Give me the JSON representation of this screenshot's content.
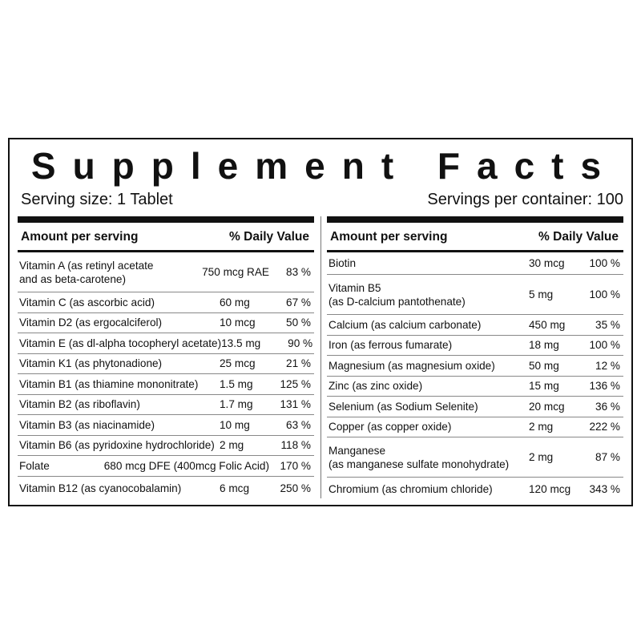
{
  "title": "Supplement Facts",
  "serving_size": "Serving size: 1 Tablet",
  "servings_per_container": "Servings per container: 100",
  "columns": [
    {
      "header_amount": "Amount per serving",
      "header_dv": "% Daily Value",
      "rows": [
        {
          "name": [
            "Vitamin A (as retinyl acetate",
            "and as beta-carotene)"
          ],
          "amount": "750 mcg RAE",
          "dv": "83 %"
        },
        {
          "name": [
            "Vitamin C (as ascorbic acid)"
          ],
          "amount": "60 mg",
          "dv": "67 %"
        },
        {
          "name": [
            "Vitamin D2 (as ergocalciferol)"
          ],
          "amount": "10 mcg",
          "dv": "50 %"
        },
        {
          "name": [
            "Vitamin E (as dl-alpha tocopheryl acetate)"
          ],
          "amount": "13.5 mg",
          "dv": "90 %"
        },
        {
          "name": [
            "Vitamin K1 (as phytonadione)"
          ],
          "amount": "25 mcg",
          "dv": "21 %"
        },
        {
          "name": [
            "Vitamin B1 (as thiamine mononitrate)"
          ],
          "amount": "1.5 mg",
          "dv": "125 %"
        },
        {
          "name": [
            "Vitamin B2 (as riboflavin)"
          ],
          "amount": "1.7 mg",
          "dv": "131 %"
        },
        {
          "name": [
            "Vitamin B3 (as niacinamide)"
          ],
          "amount": "10 mg",
          "dv": "63 %"
        },
        {
          "name": [
            "Vitamin B6 (as pyridoxine hydrochloride)"
          ],
          "amount": "2 mg",
          "dv": "118 %"
        },
        {
          "name": [
            "Folate"
          ],
          "amount": "680 mcg DFE (400mcg Folic Acid)",
          "dv": "170 %"
        },
        {
          "name": [
            "Vitamin B12 (as cyanocobalamin)"
          ],
          "amount": "6 mcg",
          "dv": "250 %"
        }
      ]
    },
    {
      "header_amount": "Amount per serving",
      "header_dv": "% Daily Value",
      "rows": [
        {
          "name": [
            "Biotin"
          ],
          "amount": "30 mcg",
          "dv": "100 %"
        },
        {
          "name": [
            "Vitamin B5",
            "(as D-calcium pantothenate)"
          ],
          "amount": "5 mg",
          "dv": "100 %"
        },
        {
          "name": [
            "Calcium (as calcium carbonate)"
          ],
          "amount": "450 mg",
          "dv": "35 %"
        },
        {
          "name": [
            "Iron (as ferrous fumarate)"
          ],
          "amount": "18 mg",
          "dv": "100 %"
        },
        {
          "name": [
            "Magnesium (as magnesium oxide)"
          ],
          "amount": "50 mg",
          "dv": "12 %"
        },
        {
          "name": [
            "Zinc (as zinc oxide)"
          ],
          "amount": "15 mg",
          "dv": "136 %"
        },
        {
          "name": [
            "Selenium (as Sodium Selenite)"
          ],
          "amount": "20 mcg",
          "dv": "36 %"
        },
        {
          "name": [
            "Copper (as copper oxide)"
          ],
          "amount": "2 mg",
          "dv": "222 %"
        },
        {
          "name": [
            "Manganese",
            "(as manganese sulfate monohydrate)"
          ],
          "amount": "2 mg",
          "dv": "87 %"
        },
        {
          "name": [
            "Chromium (as chromium chloride)"
          ],
          "amount": "120 mcg",
          "dv": "343 %"
        }
      ]
    }
  ]
}
